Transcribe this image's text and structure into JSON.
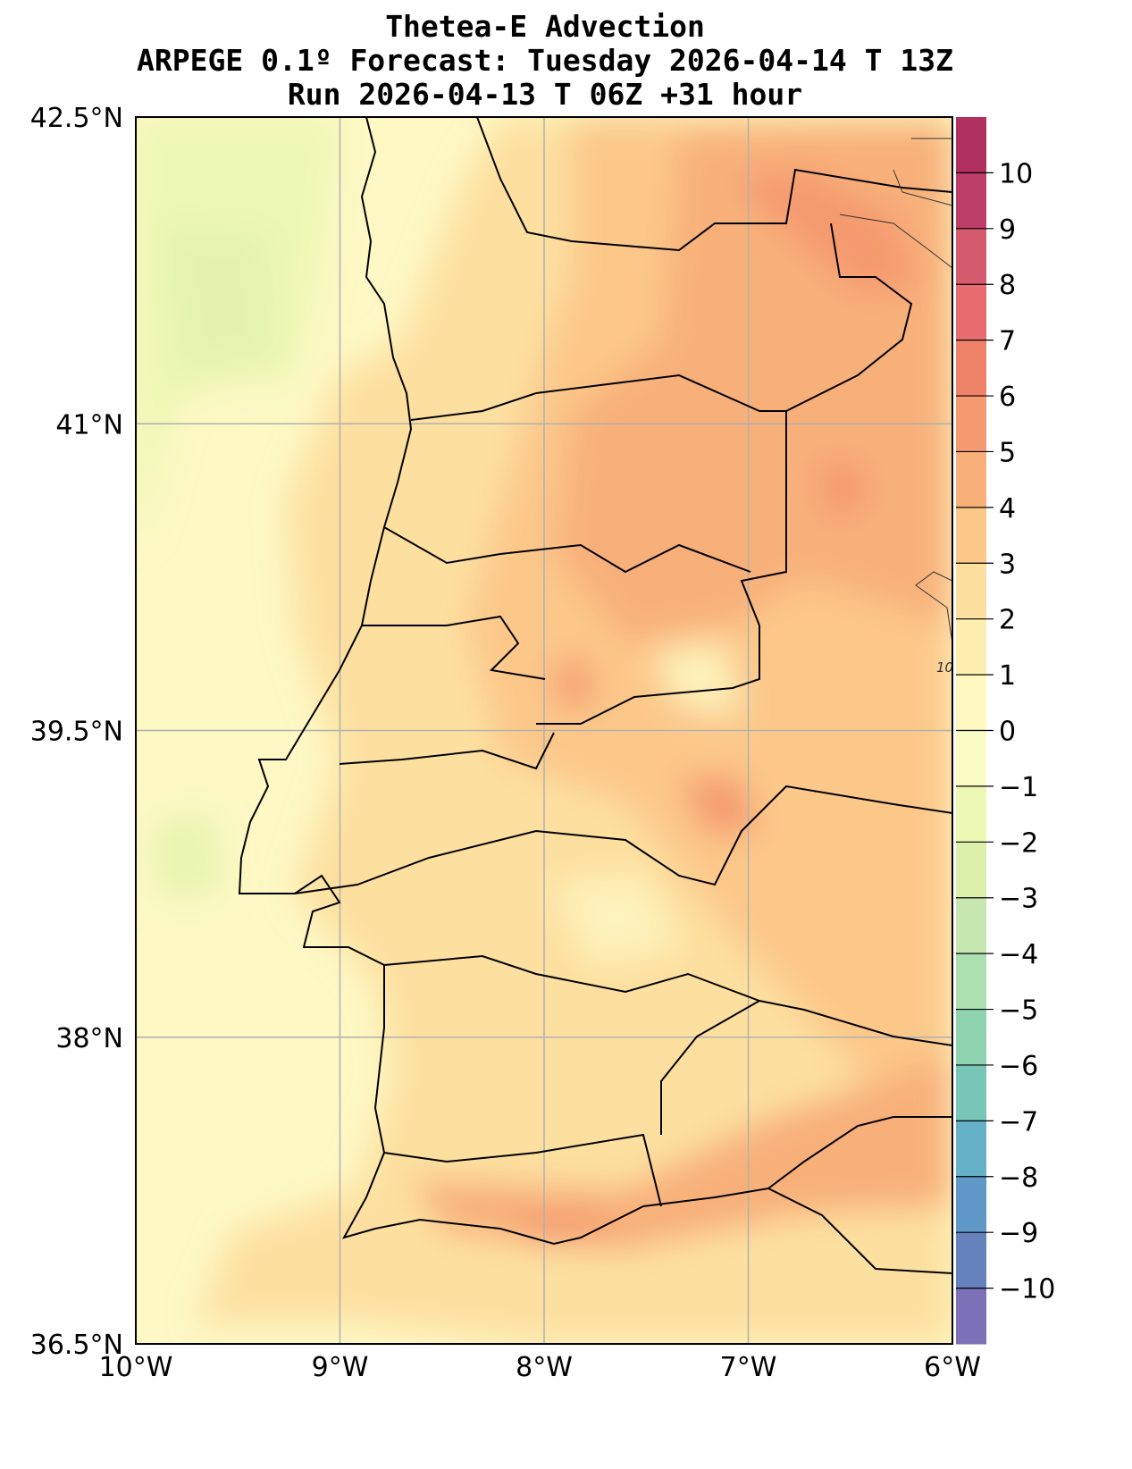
{
  "title": {
    "line1": "Thetea-E Advection",
    "line2": "ARPEGE 0.1º Forecast: Tuesday 2026-04-14 T 13Z",
    "line3": "Run 2026-04-13 T 06Z +31 hour"
  },
  "map": {
    "lon_range": [
      -10,
      -6
    ],
    "lat_range": [
      36.5,
      42.5
    ],
    "x_ticks": [
      {
        "v": -10,
        "label": "10°W"
      },
      {
        "v": -9,
        "label": "9°W"
      },
      {
        "v": -8,
        "label": "8°W"
      },
      {
        "v": -7,
        "label": "7°W"
      },
      {
        "v": -6,
        "label": "6°W"
      }
    ],
    "y_ticks": [
      {
        "v": 42.5,
        "label": "42.5°N"
      },
      {
        "v": 41,
        "label": "41°N"
      },
      {
        "v": 39.5,
        "label": "39.5°N"
      },
      {
        "v": 38,
        "label": "38°N"
      },
      {
        "v": 36.5,
        "label": "36.5°N"
      }
    ],
    "contour_label": "10",
    "grid": true
  },
  "colorbar": {
    "range": [
      -11,
      11
    ],
    "ticks": [
      10,
      9,
      8,
      7,
      6,
      5,
      4,
      3,
      2,
      1,
      0,
      -1,
      -2,
      -3,
      -4,
      -5,
      -6,
      -7,
      -8,
      -9,
      -10
    ],
    "tick_labels": [
      "10",
      "9",
      "8",
      "7",
      "6",
      "5",
      "4",
      "3",
      "2",
      "1",
      "0",
      "−1",
      "−2",
      "−3",
      "−4",
      "−5",
      "−6",
      "−7",
      "−8",
      "−9",
      "−10"
    ],
    "colors": [
      "#7c70b6",
      "#6582bd",
      "#5f97c6",
      "#66b1c8",
      "#78c6b8",
      "#8fd3b0",
      "#ade0b0",
      "#c6e8b0",
      "#dcf0ac",
      "#eef8b5",
      "#fbfcc4",
      "#fff8c0",
      "#feefb0",
      "#fde0a0",
      "#fcc88a",
      "#f8b07a",
      "#f59a70",
      "#ee8268",
      "#e66c70",
      "#d45a6e",
      "#bb3d68",
      "#b03060"
    ]
  }
}
